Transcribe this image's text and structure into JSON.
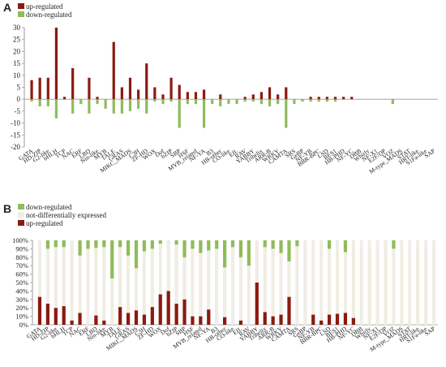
{
  "colors": {
    "up": "#8b1a10",
    "down": "#8fbc5a",
    "not_de": "#f0ede4",
    "axis": "#999999",
    "grid": "#dddddd"
  },
  "chart_data": [
    {
      "panel": "A",
      "type": "bar",
      "legend": [
        "up-regulated",
        "down-regulated"
      ],
      "legend_position": "top-left",
      "ylim": [
        -20,
        30
      ],
      "yticks": [
        -20,
        -15,
        -10,
        -5,
        0,
        5,
        10,
        15,
        20,
        25,
        30
      ],
      "grid": false,
      "categories": [
        "GATA",
        "HD-ZIP",
        "G2-like",
        "bHLH",
        "TCP",
        "NAC",
        "ERF",
        "LBD",
        "Nin-like",
        "MYB",
        "TALE",
        "GRAS",
        "MIKC_MADS",
        "C3H",
        "ZF-HD",
        "WOX",
        "Dof",
        "bZIP",
        "SBP",
        "HSF",
        "MYB_related",
        "NF-YA",
        "B3",
        "HB-other",
        "CO-like",
        "EIL",
        "RAV",
        "YABBY",
        "Trihelix",
        "ARR-B",
        "WRKY",
        "CAMTA",
        "SRS",
        "GeBP",
        "NF-YB",
        "BBR-BPC",
        "LSD",
        "BES1",
        "HB-PHD",
        "NF-YC",
        "DBB",
        "Whirly",
        "NF-X1",
        "E2F/DP",
        "VOZ",
        "M-type_MADS",
        "STAT",
        "HRT-like",
        "S1Fa-like",
        "SAP"
      ],
      "series": [
        {
          "name": "up-regulated",
          "values": [
            8,
            9,
            9,
            30,
            1,
            13,
            0,
            9,
            1,
            0,
            24,
            5,
            9,
            4,
            15,
            5,
            2,
            9,
            6,
            3,
            3,
            4,
            0,
            2,
            0,
            0,
            1,
            2,
            3,
            5,
            2,
            5,
            0,
            0,
            1,
            1,
            1,
            1,
            1,
            1,
            0,
            0,
            0,
            0,
            0,
            0,
            0,
            0,
            0,
            0
          ]
        },
        {
          "name": "down-regulated",
          "values": [
            -1,
            -3,
            -3,
            -8,
            0,
            -6,
            -2,
            -6,
            -2,
            -4,
            -6,
            -6,
            -5,
            -4,
            -6,
            -1,
            -2,
            -1,
            -12,
            -2,
            -2,
            -12,
            -2,
            -3,
            -2,
            -2,
            -1,
            -1,
            -2,
            -3,
            -2,
            -12,
            -2,
            -1,
            -1,
            -1,
            -1,
            -1,
            0,
            0,
            0,
            0,
            0,
            0,
            -2,
            0,
            0,
            0,
            0,
            0
          ]
        }
      ]
    },
    {
      "panel": "B",
      "type": "bar",
      "stacked": true,
      "legend": [
        "down-regulated",
        "not-differentially expressed",
        "up-regulated"
      ],
      "legend_position": "top-left",
      "ylim": [
        0,
        100
      ],
      "yticks": [
        "0%",
        "10%",
        "20%",
        "30%",
        "40%",
        "50%",
        "60%",
        "70%",
        "80%",
        "90%",
        "100%"
      ],
      "categories": [
        "GATA",
        "HD-ZIP",
        "G2-like",
        "bHLH",
        "TCP",
        "NAC",
        "ERF",
        "LBD",
        "Nin-like",
        "MYB",
        "TALE",
        "GRAS",
        "MIKC_MADS",
        "C3H",
        "ZF-HD",
        "WOX",
        "Dof",
        "bZIP",
        "SBP",
        "HSF",
        "MYB_related",
        "NF-YA",
        "B3",
        "HB-other",
        "CO-like",
        "EIL",
        "RAV",
        "YABBY",
        "Trihelix",
        "ARR-B",
        "WRKY",
        "CAMTA",
        "SRS",
        "GeBP",
        "NF-YB",
        "BBR-BPC",
        "LSD",
        "BES1",
        "HB-PHD",
        "NF-YC",
        "DBB",
        "Whirly",
        "NF-X1",
        "E2F/DP",
        "VOZ",
        "M-type_MADS",
        "STAT",
        "HRT-like",
        "S1Fa-like",
        "SAP"
      ],
      "series": [
        {
          "name": "up-regulated",
          "values": [
            33,
            25,
            20,
            22,
            5,
            14,
            0,
            11,
            5,
            0,
            21,
            14,
            17,
            12,
            21,
            36,
            40,
            25,
            30,
            10,
            10,
            18,
            0,
            9,
            0,
            5,
            0,
            50,
            15,
            10,
            12,
            33,
            0,
            0,
            12,
            5,
            12,
            13,
            14,
            8,
            0,
            0,
            0,
            0,
            0,
            0,
            0,
            0,
            0,
            0
          ]
        },
        {
          "name": "down-regulated",
          "values": [
            0,
            10,
            8,
            8,
            0,
            18,
            10,
            9,
            8,
            45,
            8,
            18,
            33,
            13,
            10,
            4,
            0,
            5,
            20,
            10,
            15,
            12,
            10,
            32,
            8,
            20,
            30,
            0,
            8,
            10,
            15,
            25,
            7,
            0,
            0,
            0,
            10,
            0,
            14,
            0,
            0,
            0,
            0,
            0,
            10,
            0,
            0,
            0,
            0,
            0
          ]
        }
      ]
    }
  ]
}
